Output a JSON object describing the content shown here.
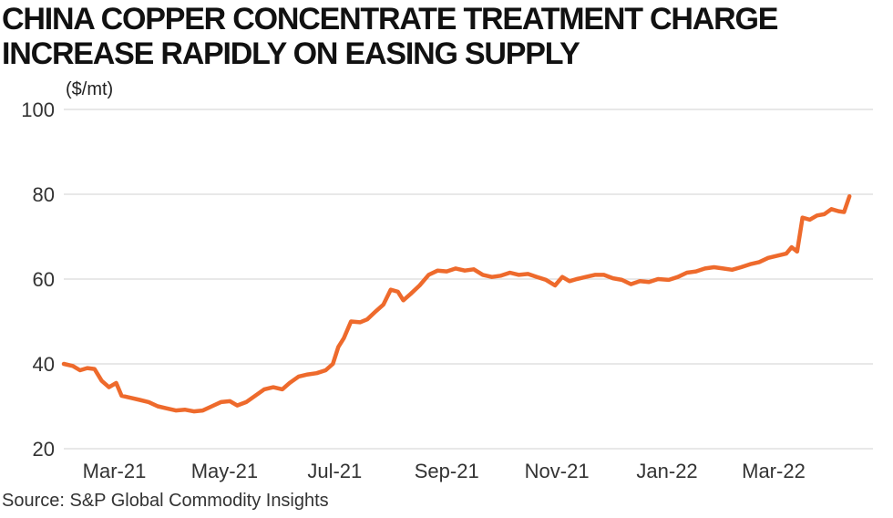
{
  "title": "CHINA COPPER CONCENTRATE TREATMENT CHARGE INCREASE RAPIDLY ON EASING SUPPLY",
  "source": "Source: S&P Global Commodity Insights",
  "colors": {
    "line": "#ee6a2c",
    "grid": "#d9d9d9",
    "text": "#333333"
  },
  "chart_data": {
    "type": "line",
    "title": "CHINA COPPER CONCENTRATE TREATMENT CHARGE INCREASE RAPIDLY ON EASING SUPPLY",
    "ylabel": "($/mt)",
    "xlabel": "",
    "ylim": [
      20,
      100
    ],
    "yticks": [
      20,
      40,
      60,
      80,
      100
    ],
    "xlim": [
      "2021-02-01",
      "2022-04-25"
    ],
    "xticks": [
      {
        "date": "2021-03-01",
        "label": "Mar-21"
      },
      {
        "date": "2021-05-01",
        "label": "May-21"
      },
      {
        "date": "2021-07-01",
        "label": "Jul-21"
      },
      {
        "date": "2021-09-01",
        "label": "Sep-21"
      },
      {
        "date": "2021-11-01",
        "label": "Nov-21"
      },
      {
        "date": "2022-01-01",
        "label": "Jan-22"
      },
      {
        "date": "2022-03-01",
        "label": "Mar-22"
      }
    ],
    "grid": true,
    "series": [
      {
        "points": [
          [
            "2021-02-01",
            40
          ],
          [
            "2021-02-06",
            39.5
          ],
          [
            "2021-02-10",
            38.5
          ],
          [
            "2021-02-14",
            39
          ],
          [
            "2021-02-18",
            38.8
          ],
          [
            "2021-02-22",
            36
          ],
          [
            "2021-02-26",
            34.5
          ],
          [
            "2021-03-02",
            35.5
          ],
          [
            "2021-03-05",
            32.5
          ],
          [
            "2021-03-10",
            32
          ],
          [
            "2021-03-15",
            31.5
          ],
          [
            "2021-03-20",
            31
          ],
          [
            "2021-03-25",
            30
          ],
          [
            "2021-03-30",
            29.5
          ],
          [
            "2021-04-04",
            29
          ],
          [
            "2021-04-09",
            29.2
          ],
          [
            "2021-04-14",
            28.8
          ],
          [
            "2021-04-19",
            29
          ],
          [
            "2021-04-24",
            30
          ],
          [
            "2021-04-29",
            31
          ],
          [
            "2021-05-04",
            31.2
          ],
          [
            "2021-05-08",
            30.2
          ],
          [
            "2021-05-13",
            31
          ],
          [
            "2021-05-18",
            32.5
          ],
          [
            "2021-05-23",
            34
          ],
          [
            "2021-05-28",
            34.5
          ],
          [
            "2021-06-02",
            34
          ],
          [
            "2021-06-06",
            35.5
          ],
          [
            "2021-06-11",
            37
          ],
          [
            "2021-06-16",
            37.5
          ],
          [
            "2021-06-21",
            37.8
          ],
          [
            "2021-06-26",
            38.5
          ],
          [
            "2021-06-30",
            40
          ],
          [
            "2021-07-03",
            44
          ],
          [
            "2021-07-06",
            46
          ],
          [
            "2021-07-10",
            50
          ],
          [
            "2021-07-15",
            49.8
          ],
          [
            "2021-07-19",
            50.5
          ],
          [
            "2021-07-24",
            52.5
          ],
          [
            "2021-07-28",
            54
          ],
          [
            "2021-08-01",
            57.5
          ],
          [
            "2021-08-05",
            57
          ],
          [
            "2021-08-08",
            55
          ],
          [
            "2021-08-12",
            56.5
          ],
          [
            "2021-08-17",
            58.5
          ],
          [
            "2021-08-22",
            61
          ],
          [
            "2021-08-27",
            62
          ],
          [
            "2021-09-01",
            61.8
          ],
          [
            "2021-09-06",
            62.5
          ],
          [
            "2021-09-11",
            62
          ],
          [
            "2021-09-16",
            62.3
          ],
          [
            "2021-09-21",
            61
          ],
          [
            "2021-09-26",
            60.5
          ],
          [
            "2021-10-01",
            60.8
          ],
          [
            "2021-10-06",
            61.5
          ],
          [
            "2021-10-11",
            61
          ],
          [
            "2021-10-16",
            61.2
          ],
          [
            "2021-10-21",
            60.5
          ],
          [
            "2021-10-26",
            59.8
          ],
          [
            "2021-10-31",
            58.5
          ],
          [
            "2021-11-04",
            60.5
          ],
          [
            "2021-11-08",
            59.5
          ],
          [
            "2021-11-12",
            60
          ],
          [
            "2021-11-17",
            60.5
          ],
          [
            "2021-11-22",
            61
          ],
          [
            "2021-11-27",
            61
          ],
          [
            "2021-12-02",
            60.2
          ],
          [
            "2021-12-07",
            59.8
          ],
          [
            "2021-12-12",
            58.8
          ],
          [
            "2021-12-17",
            59.5
          ],
          [
            "2021-12-22",
            59.3
          ],
          [
            "2021-12-27",
            60
          ],
          [
            "2022-01-02",
            59.8
          ],
          [
            "2022-01-07",
            60.5
          ],
          [
            "2022-01-12",
            61.5
          ],
          [
            "2022-01-17",
            61.8
          ],
          [
            "2022-01-22",
            62.5
          ],
          [
            "2022-01-27",
            62.8
          ],
          [
            "2022-02-01",
            62.5
          ],
          [
            "2022-02-06",
            62.2
          ],
          [
            "2022-02-11",
            62.8
          ],
          [
            "2022-02-16",
            63.5
          ],
          [
            "2022-02-21",
            64
          ],
          [
            "2022-02-26",
            65
          ],
          [
            "2022-03-03",
            65.5
          ],
          [
            "2022-03-08",
            66
          ],
          [
            "2022-03-11",
            67.5
          ],
          [
            "2022-03-14",
            66.5
          ],
          [
            "2022-03-17",
            74.5
          ],
          [
            "2022-03-21",
            74
          ],
          [
            "2022-03-25",
            75
          ],
          [
            "2022-03-29",
            75.3
          ],
          [
            "2022-04-02",
            76.5
          ],
          [
            "2022-04-06",
            76
          ],
          [
            "2022-04-09",
            75.8
          ],
          [
            "2022-04-12",
            79.5
          ]
        ]
      }
    ]
  }
}
